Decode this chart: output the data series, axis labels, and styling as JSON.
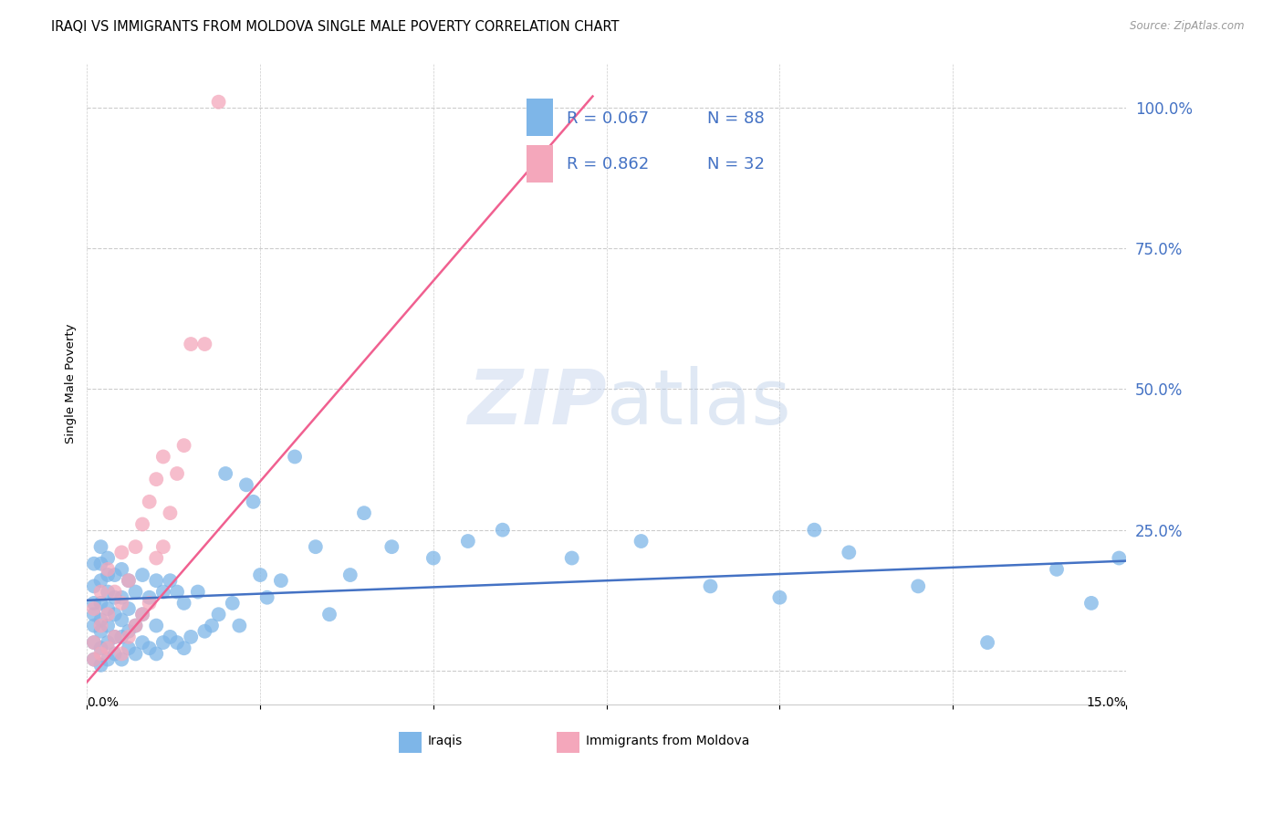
{
  "title": "IRAQI VS IMMIGRANTS FROM MOLDOVA SINGLE MALE POVERTY CORRELATION CHART",
  "source": "Source: ZipAtlas.com",
  "ylabel": "Single Male Poverty",
  "ytick_labels": [
    "",
    "25.0%",
    "50.0%",
    "75.0%",
    "100.0%"
  ],
  "xlim": [
    0.0,
    0.15
  ],
  "ylim": [
    -0.06,
    1.08
  ],
  "iraqis_color": "#7eb6e8",
  "moldova_color": "#f4a7bb",
  "iraqis_line_color": "#4472c4",
  "moldova_line_color": "#f06090",
  "background_color": "#ffffff",
  "ytick_color": "#4472c4",
  "grid_color": "#cccccc",
  "iraq_line_x": [
    0.0,
    0.15
  ],
  "iraq_line_y": [
    0.125,
    0.195
  ],
  "moldova_line_x": [
    0.0,
    0.073
  ],
  "moldova_line_y": [
    -0.02,
    1.02
  ],
  "iraqis_x": [
    0.001,
    0.001,
    0.001,
    0.001,
    0.001,
    0.001,
    0.001,
    0.002,
    0.002,
    0.002,
    0.002,
    0.002,
    0.002,
    0.002,
    0.002,
    0.003,
    0.003,
    0.003,
    0.003,
    0.003,
    0.003,
    0.003,
    0.004,
    0.004,
    0.004,
    0.004,
    0.004,
    0.005,
    0.005,
    0.005,
    0.005,
    0.005,
    0.006,
    0.006,
    0.006,
    0.006,
    0.007,
    0.007,
    0.007,
    0.008,
    0.008,
    0.008,
    0.009,
    0.009,
    0.01,
    0.01,
    0.01,
    0.011,
    0.011,
    0.012,
    0.012,
    0.013,
    0.013,
    0.014,
    0.014,
    0.015,
    0.016,
    0.017,
    0.018,
    0.019,
    0.02,
    0.021,
    0.022,
    0.023,
    0.024,
    0.025,
    0.026,
    0.028,
    0.03,
    0.033,
    0.035,
    0.038,
    0.04,
    0.044,
    0.05,
    0.055,
    0.06,
    0.07,
    0.08,
    0.09,
    0.1,
    0.105,
    0.11,
    0.12,
    0.13,
    0.14,
    0.145,
    0.149
  ],
  "iraqis_y": [
    0.02,
    0.05,
    0.08,
    0.1,
    0.12,
    0.15,
    0.19,
    0.01,
    0.04,
    0.07,
    0.09,
    0.12,
    0.16,
    0.19,
    0.22,
    0.02,
    0.05,
    0.08,
    0.11,
    0.14,
    0.17,
    0.2,
    0.03,
    0.06,
    0.1,
    0.13,
    0.17,
    0.02,
    0.06,
    0.09,
    0.13,
    0.18,
    0.04,
    0.07,
    0.11,
    0.16,
    0.03,
    0.08,
    0.14,
    0.05,
    0.1,
    0.17,
    0.04,
    0.13,
    0.03,
    0.08,
    0.16,
    0.05,
    0.14,
    0.06,
    0.16,
    0.05,
    0.14,
    0.04,
    0.12,
    0.06,
    0.14,
    0.07,
    0.08,
    0.1,
    0.35,
    0.12,
    0.08,
    0.33,
    0.3,
    0.17,
    0.13,
    0.16,
    0.38,
    0.22,
    0.1,
    0.17,
    0.28,
    0.22,
    0.2,
    0.23,
    0.25,
    0.2,
    0.23,
    0.15,
    0.13,
    0.25,
    0.21,
    0.15,
    0.05,
    0.18,
    0.12,
    0.2
  ],
  "moldova_x": [
    0.001,
    0.001,
    0.001,
    0.002,
    0.002,
    0.002,
    0.003,
    0.003,
    0.003,
    0.004,
    0.004,
    0.005,
    0.005,
    0.005,
    0.006,
    0.006,
    0.007,
    0.007,
    0.008,
    0.008,
    0.009,
    0.009,
    0.01,
    0.01,
    0.011,
    0.011,
    0.012,
    0.013,
    0.014,
    0.015,
    0.017,
    0.019
  ],
  "moldova_y": [
    0.02,
    0.05,
    0.11,
    0.03,
    0.08,
    0.14,
    0.04,
    0.1,
    0.18,
    0.06,
    0.14,
    0.03,
    0.12,
    0.21,
    0.06,
    0.16,
    0.08,
    0.22,
    0.1,
    0.26,
    0.12,
    0.3,
    0.2,
    0.34,
    0.22,
    0.38,
    0.28,
    0.35,
    0.4,
    0.58,
    0.58,
    1.01
  ]
}
